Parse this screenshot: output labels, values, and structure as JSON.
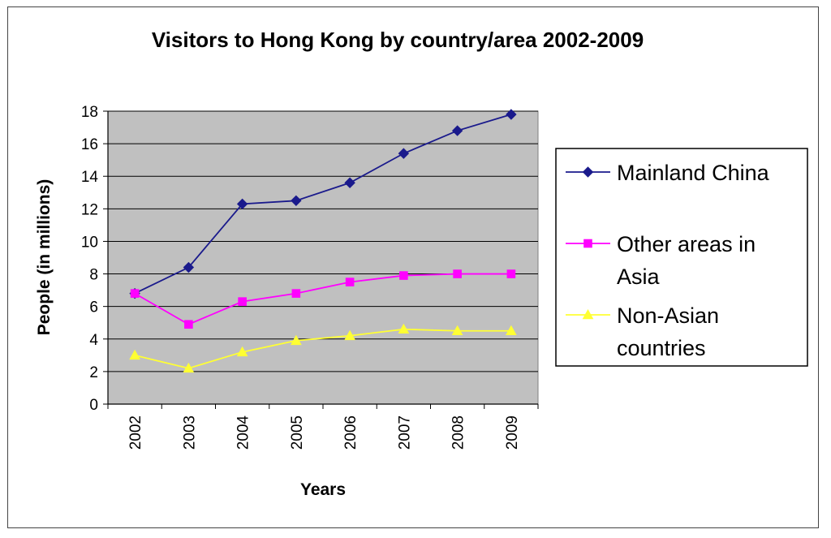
{
  "chart_data": {
    "type": "line",
    "title": "Visitors to Hong Kong by country/area 2002-2009",
    "xlabel": "Years",
    "ylabel": "People (in millions)",
    "x": [
      "2002",
      "2003",
      "2004",
      "2005",
      "2006",
      "2007",
      "2008",
      "2009"
    ],
    "ylim": [
      0,
      18
    ],
    "yticks": [
      "0",
      "2",
      "4",
      "6",
      "8",
      "10",
      "12",
      "14",
      "16",
      "18"
    ],
    "grid": true,
    "legend_position": "right",
    "plot_background": "#c0c0c0",
    "series": [
      {
        "name": "Mainland China",
        "legend_lines": [
          "Mainland China"
        ],
        "color": "#1a1a8c",
        "marker": "diamond",
        "values": [
          6.8,
          8.4,
          12.3,
          12.5,
          13.6,
          15.4,
          16.8,
          17.8
        ]
      },
      {
        "name": "Other areas in Asia",
        "legend_lines": [
          "Other areas in",
          "Asia"
        ],
        "color": "#ff00ff",
        "marker": "square",
        "values": [
          6.8,
          4.9,
          6.3,
          6.8,
          7.5,
          7.9,
          8.0,
          8.0
        ]
      },
      {
        "name": "Non-Asian countries",
        "legend_lines": [
          "Non-Asian",
          "countries"
        ],
        "color": "#ffff33",
        "marker": "triangle",
        "values": [
          3.0,
          2.2,
          3.2,
          3.9,
          4.2,
          4.6,
          4.5,
          4.5
        ]
      }
    ]
  }
}
